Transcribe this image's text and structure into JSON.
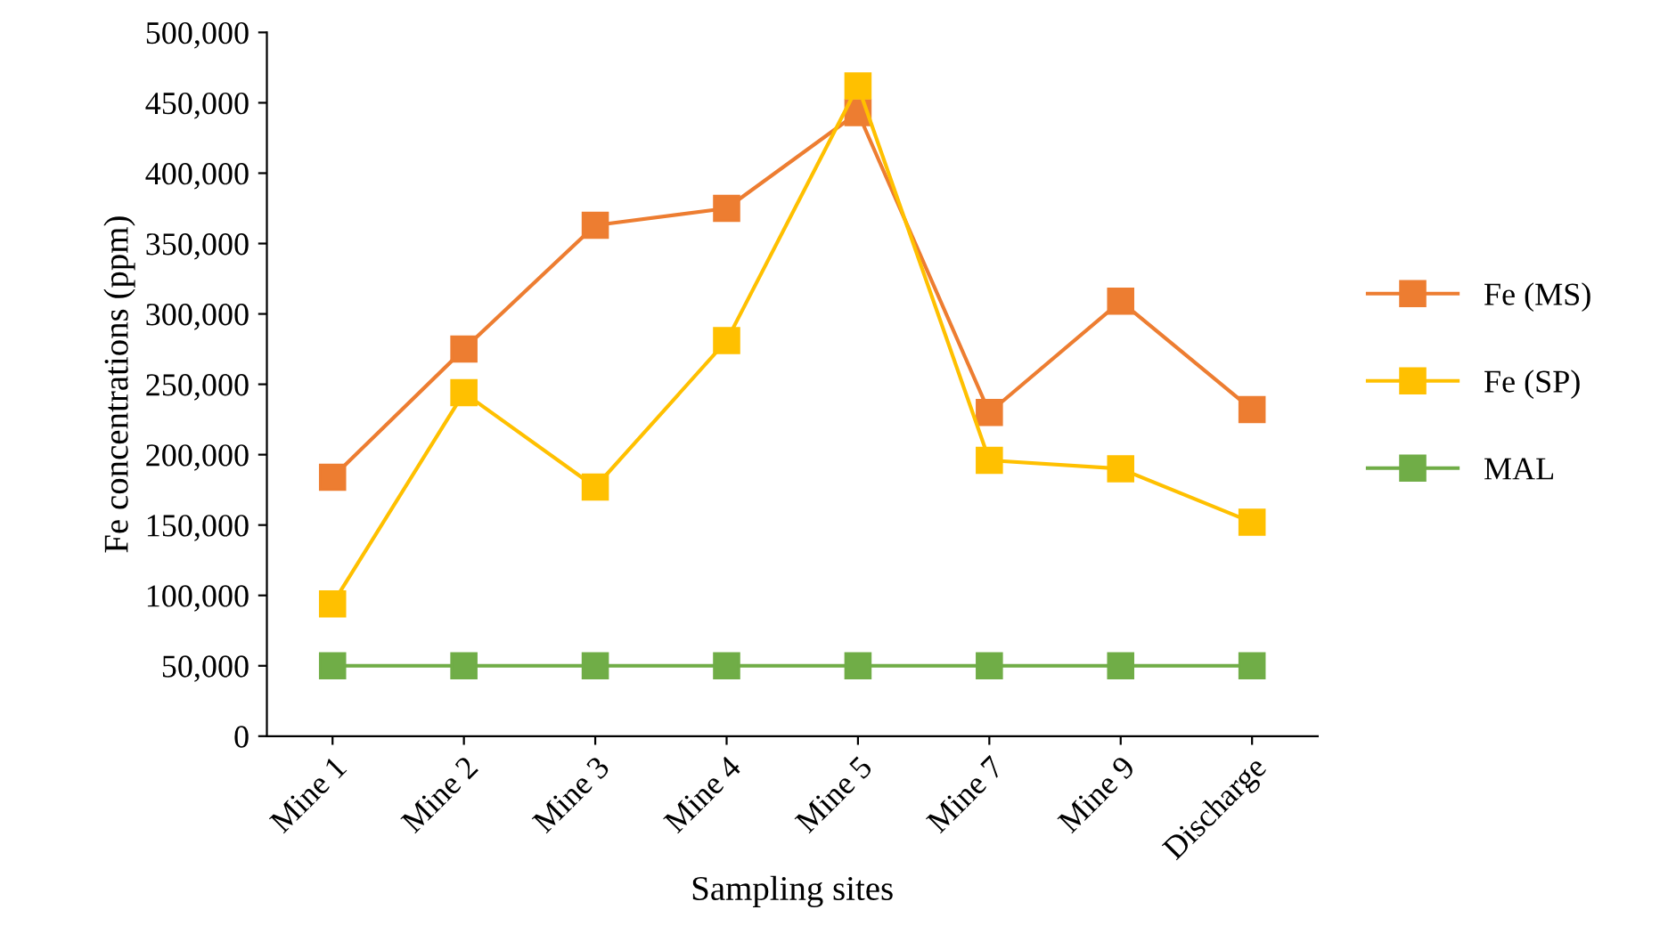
{
  "chart_data": {
    "type": "line",
    "xlabel": "Sampling sites",
    "ylabel": "Fe concentrations (ppm)",
    "categories": [
      "Mine 1",
      "Mine 2",
      "Mine 3",
      "Mine 4",
      "Mine 5",
      "Mine 7",
      "Mine 9",
      "Discharge"
    ],
    "series": [
      {
        "name": "Fe (MS)",
        "color": "#ed7d31",
        "values": [
          184000,
          275000,
          363000,
          375000,
          443000,
          230000,
          309000,
          232000
        ]
      },
      {
        "name": "Fe (SP)",
        "color": "#ffc000",
        "values": [
          94000,
          244000,
          177000,
          281000,
          462000,
          196000,
          190000,
          152000
        ]
      },
      {
        "name": "MAL",
        "color": "#70ad47",
        "values": [
          50000,
          50000,
          50000,
          50000,
          50000,
          50000,
          50000,
          50000
        ]
      }
    ],
    "ylim": [
      0,
      500000
    ],
    "yticks": [
      {
        "value": 0,
        "label": "0"
      },
      {
        "value": 50000,
        "label": "50,000"
      },
      {
        "value": 100000,
        "label": "100,000"
      },
      {
        "value": 150000,
        "label": "150,000"
      },
      {
        "value": 200000,
        "label": "200,000"
      },
      {
        "value": 250000,
        "label": "250,000"
      },
      {
        "value": 300000,
        "label": "300,000"
      },
      {
        "value": 350000,
        "label": "350,000"
      },
      {
        "value": 400000,
        "label": "400,000"
      },
      {
        "value": 450000,
        "label": "450,000"
      },
      {
        "value": 500000,
        "label": "500,000"
      }
    ],
    "grid": false,
    "legend": "right",
    "marker": "square",
    "line_style": "solid"
  }
}
